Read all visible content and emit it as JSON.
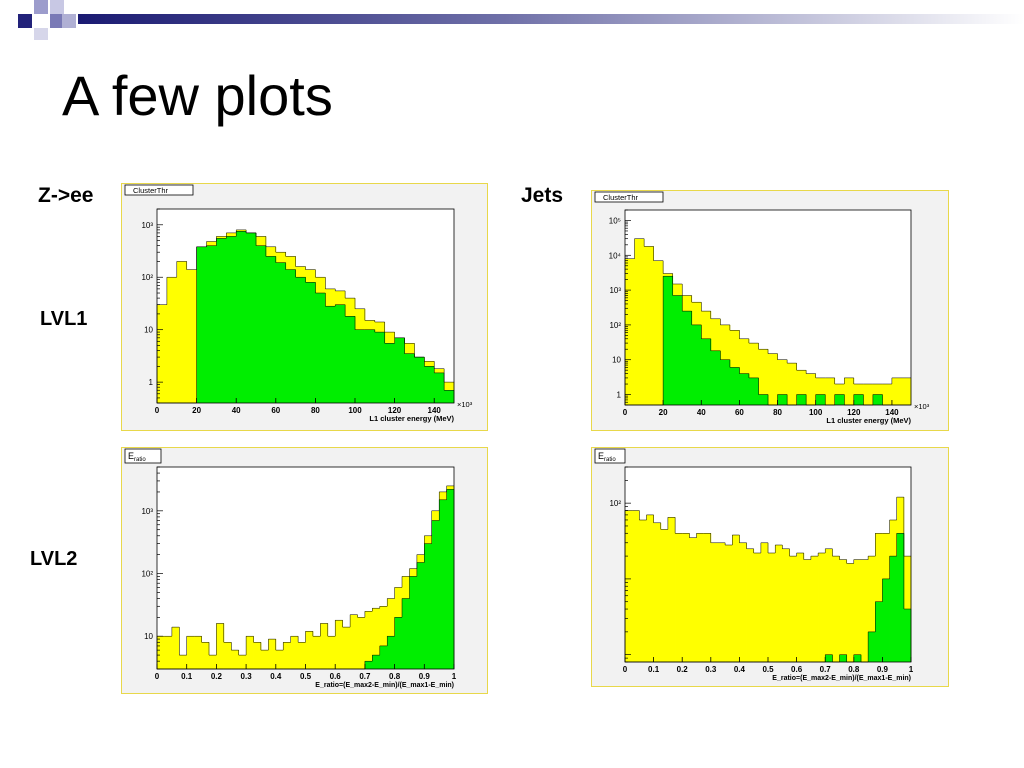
{
  "slide": {
    "title": "A few plots",
    "colors": {
      "header_bar": "#22227a",
      "frame": "#f2f2f2",
      "frame_border": "#e8d84a"
    }
  },
  "row_labels": {
    "lvl1": "LVL1",
    "lvl2": "LVL2"
  },
  "column_labels": {
    "zee": "Z->ee",
    "jets": "Jets"
  },
  "chart_data": [
    {
      "id": "zee_lvl1",
      "type": "bar",
      "stat_box": "ClusterThr",
      "xlabel": "L1 cluster energy (MeV)",
      "x_multiplier": "×10³",
      "yscale": "log",
      "ylim": [
        0.4,
        2000
      ],
      "xlim": [
        0,
        150
      ],
      "xticks": [
        0,
        20,
        40,
        60,
        80,
        100,
        120,
        140
      ],
      "yticks": [
        {
          "v": 1,
          "t": "1"
        },
        {
          "v": 10,
          "t": "10"
        },
        {
          "v": 100,
          "t": "10²"
        },
        {
          "v": 1000,
          "t": "10³"
        }
      ],
      "bin_start": 0,
      "bin_width": 5,
      "series": [
        {
          "color": "#ffff00",
          "values": [
            30,
            100,
            200,
            140,
            380,
            480,
            600,
            700,
            800,
            700,
            600,
            380,
            300,
            250,
            160,
            140,
            100,
            60,
            55,
            40,
            25,
            15,
            14,
            9,
            7,
            5.5,
            3,
            2.5,
            1.8,
            1
          ]
        },
        {
          "color": "#00ee00",
          "values": [
            0,
            0,
            0,
            0,
            380,
            400,
            550,
            600,
            750,
            700,
            400,
            250,
            190,
            140,
            100,
            80,
            50,
            28,
            30,
            18,
            10,
            10,
            9,
            5.5,
            7,
            3.5,
            3,
            2,
            1.5,
            0.7
          ]
        }
      ]
    },
    {
      "id": "jets_lvl1",
      "type": "bar",
      "stat_box": "ClusterThr",
      "xlabel": "L1 cluster energy (MeV)",
      "x_multiplier": "×10³",
      "yscale": "log",
      "ylim": [
        0.5,
        200000
      ],
      "xlim": [
        0,
        150
      ],
      "xticks": [
        0,
        20,
        40,
        60,
        80,
        100,
        120,
        140
      ],
      "yticks": [
        {
          "v": 1,
          "t": "1"
        },
        {
          "v": 10,
          "t": "10"
        },
        {
          "v": 100,
          "t": "10²"
        },
        {
          "v": 1000,
          "t": "10³"
        },
        {
          "v": 10000,
          "t": "10⁴"
        },
        {
          "v": 100000,
          "t": "10⁵"
        }
      ],
      "bin_start": 0,
      "bin_width": 5,
      "series": [
        {
          "color": "#ffff00",
          "values": [
            8000,
            30000,
            18000,
            7000,
            3000,
            1500,
            700,
            450,
            250,
            150,
            100,
            70,
            40,
            30,
            20,
            15,
            10,
            8,
            5,
            4,
            3,
            3,
            2,
            3,
            2,
            2,
            2,
            2,
            3,
            3
          ]
        },
        {
          "color": "#00ee00",
          "values": [
            0,
            0,
            0,
            0,
            2500,
            700,
            250,
            100,
            40,
            18,
            10,
            6,
            4,
            3,
            1,
            0,
            1,
            0,
            1,
            0,
            1,
            0,
            1,
            0,
            1,
            0,
            1,
            0,
            0,
            0
          ]
        }
      ]
    },
    {
      "id": "zee_lvl2",
      "type": "bar",
      "stat_box": "E_ratio",
      "xlabel": "E_ratio=(E_max2-E_min)/(E_max1-E_min)",
      "yscale": "log",
      "ylim": [
        3,
        5000
      ],
      "xlim": [
        0,
        1
      ],
      "xticks": [
        0,
        0.1,
        0.2,
        0.3,
        0.4,
        0.5,
        0.6,
        0.7,
        0.8,
        0.9,
        1
      ],
      "yticks": [
        {
          "v": 10,
          "t": "10"
        },
        {
          "v": 100,
          "t": "10²"
        },
        {
          "v": 1000,
          "t": "10³"
        }
      ],
      "bin_start": 0,
      "bin_width": 0.025,
      "series": [
        {
          "color": "#ffff00",
          "values": [
            10,
            10,
            14,
            5,
            10,
            10,
            8,
            5,
            16,
            8,
            6,
            5,
            10,
            8,
            6,
            9,
            6,
            8,
            10,
            8,
            12,
            10,
            16,
            10,
            18,
            14,
            22,
            20,
            25,
            28,
            30,
            40,
            60,
            90,
            120,
            200,
            400,
            1000,
            2000,
            2500
          ]
        },
        {
          "color": "#00ee00",
          "values": [
            0,
            0,
            0,
            0,
            0,
            0,
            0,
            0,
            0,
            0,
            0,
            0,
            0,
            0,
            0,
            0,
            0,
            0,
            0,
            0,
            0,
            0,
            0,
            0,
            0,
            0,
            0,
            0,
            4,
            5,
            7,
            10,
            20,
            40,
            90,
            150,
            300,
            700,
            1500,
            2200
          ]
        }
      ]
    },
    {
      "id": "jets_lvl2",
      "type": "bar",
      "stat_box": "E_ratio",
      "xlabel": "E_ratio=(E_max2-E_min)/(E_max1-E_min)",
      "yscale": "log",
      "ylim": [
        0.8,
        300
      ],
      "xlim": [
        0,
        1
      ],
      "xticks": [
        0,
        0.1,
        0.2,
        0.3,
        0.4,
        0.5,
        0.6,
        0.7,
        0.8,
        0.9,
        1
      ],
      "yticks": [
        {
          "v": 100,
          "t": "10²"
        }
      ],
      "bin_start": 0,
      "bin_width": 0.025,
      "series": [
        {
          "color": "#ffff00",
          "values": [
            80,
            80,
            60,
            70,
            55,
            45,
            65,
            40,
            40,
            35,
            40,
            40,
            30,
            30,
            28,
            38,
            30,
            25,
            22,
            30,
            22,
            28,
            25,
            20,
            22,
            18,
            20,
            22,
            25,
            20,
            18,
            16,
            18,
            18,
            20,
            40,
            40,
            60,
            120,
            20
          ]
        },
        {
          "color": "#00ee00",
          "values": [
            0,
            0,
            0,
            0,
            0,
            0,
            0,
            0,
            0,
            0,
            0,
            0,
            0,
            0,
            0,
            0,
            0,
            0,
            0,
            0,
            0,
            0,
            0,
            0,
            0,
            0,
            0,
            0,
            1,
            0,
            1,
            0,
            1,
            0,
            2,
            5,
            10,
            20,
            40,
            4
          ]
        }
      ]
    }
  ]
}
